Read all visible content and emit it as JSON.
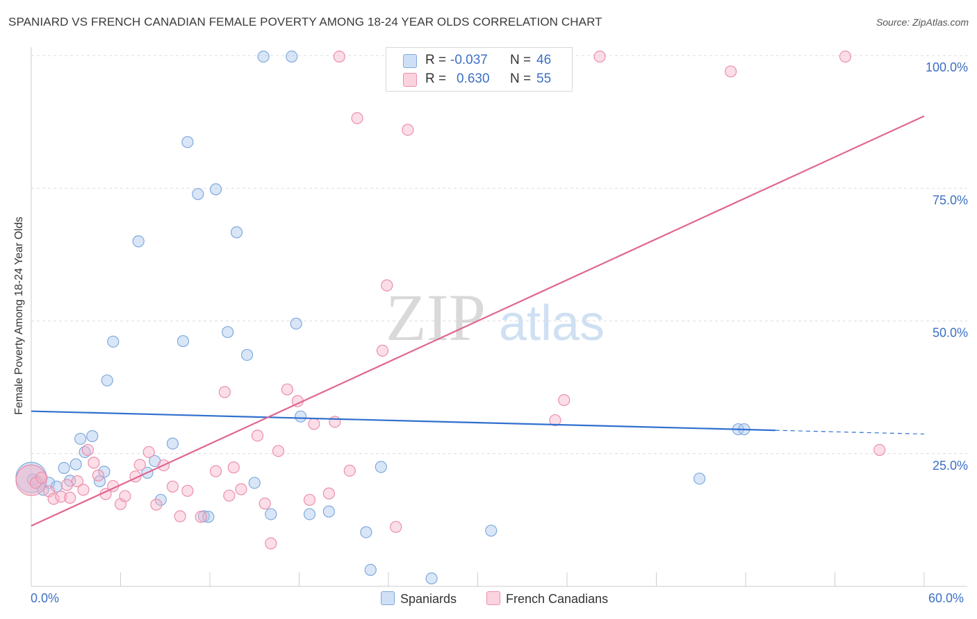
{
  "header": {
    "title": "SPANIARD VS FRENCH CANADIAN FEMALE POVERTY AMONG 18-24 YEAR OLDS CORRELATION CHART",
    "source": "Source: ZipAtlas.com"
  },
  "watermark": {
    "zip": "ZIP",
    "atlas": "atlas"
  },
  "legend": {
    "rows": [
      {
        "r_label": "R =",
        "r_value": "-0.037",
        "n_label": "N =",
        "n_value": "46",
        "color": "#aac8ee"
      },
      {
        "r_label": "R =",
        "r_value": "0.630",
        "n_label": "N =",
        "n_value": "55",
        "color": "#f7b6c9"
      }
    ]
  },
  "bottom_legend": [
    {
      "label": "Spaniards",
      "color": "#aac8ee"
    },
    {
      "label": "French Canadians",
      "color": "#f7b6c9"
    }
  ],
  "chart_data": {
    "type": "scatter",
    "title": "SPANIARD VS FRENCH CANADIAN FEMALE POVERTY AMONG 18-24 YEAR OLDS CORRELATION CHART",
    "xlabel": "",
    "ylabel": "Female Poverty Among 18-24 Year Olds",
    "xlim": [
      0,
      60
    ],
    "ylim": [
      0,
      100
    ],
    "x_tick_labels": [
      "0.0%",
      "60.0%"
    ],
    "y_tick_labels": [
      "25.0%",
      "50.0%",
      "75.0%",
      "100.0%"
    ],
    "y_ticks": [
      25,
      50,
      75,
      100
    ],
    "grid": true,
    "legend_position": "top-center",
    "series": [
      {
        "name": "Spaniards",
        "color": "#aac8ee",
        "stroke": "#7fa9dd",
        "trend_color": "#2f6fce",
        "trend": {
          "x0": 0,
          "y0": 33.0,
          "x1": 50,
          "y1": 29.4,
          "dash_to_x": 60,
          "dash_to_y": 28.7
        },
        "points": [
          [
            0.0,
            20.5
          ],
          [
            0.4,
            19.8
          ],
          [
            0.8,
            18.2
          ],
          [
            1.2,
            19.5
          ],
          [
            1.7,
            18.8
          ],
          [
            2.2,
            22.3
          ],
          [
            2.6,
            19.9
          ],
          [
            3.0,
            23.0
          ],
          [
            3.3,
            27.8
          ],
          [
            3.6,
            25.3
          ],
          [
            4.1,
            28.3
          ],
          [
            4.6,
            19.8
          ],
          [
            4.9,
            21.6
          ],
          [
            5.1,
            38.8
          ],
          [
            5.5,
            46.1
          ],
          [
            7.2,
            65.0
          ],
          [
            7.8,
            21.4
          ],
          [
            8.3,
            23.6
          ],
          [
            8.7,
            16.3
          ],
          [
            9.5,
            26.9
          ],
          [
            10.2,
            46.2
          ],
          [
            10.5,
            83.7
          ],
          [
            11.2,
            73.9
          ],
          [
            11.6,
            13.2
          ],
          [
            11.9,
            13.1
          ],
          [
            12.4,
            74.8
          ],
          [
            13.2,
            47.9
          ],
          [
            13.8,
            66.7
          ],
          [
            14.5,
            43.6
          ],
          [
            15.0,
            19.5
          ],
          [
            15.6,
            99.8
          ],
          [
            16.1,
            13.6
          ],
          [
            17.5,
            99.8
          ],
          [
            17.8,
            49.5
          ],
          [
            18.1,
            32.0
          ],
          [
            18.7,
            13.6
          ],
          [
            20.0,
            14.1
          ],
          [
            22.5,
            10.2
          ],
          [
            22.8,
            3.1
          ],
          [
            23.5,
            22.5
          ],
          [
            26.9,
            1.5
          ],
          [
            30.9,
            10.5
          ],
          [
            44.9,
            20.3
          ],
          [
            47.5,
            29.6
          ],
          [
            47.9,
            29.6
          ],
          [
            0.1,
            20.1
          ]
        ]
      },
      {
        "name": "French Canadians",
        "color": "#f7b6c9",
        "stroke": "#eb8fac",
        "trend_color": "#e0668f",
        "trend": {
          "x0": 0,
          "y0": 11.4,
          "x1": 60,
          "y1": 88.6
        },
        "points": [
          [
            0.0,
            20.0
          ],
          [
            0.3,
            19.5
          ],
          [
            0.7,
            20.5
          ],
          [
            1.2,
            17.9
          ],
          [
            1.5,
            16.5
          ],
          [
            2.0,
            16.9
          ],
          [
            2.4,
            19.1
          ],
          [
            2.6,
            16.7
          ],
          [
            3.1,
            19.8
          ],
          [
            3.5,
            18.2
          ],
          [
            3.8,
            25.7
          ],
          [
            4.2,
            23.3
          ],
          [
            4.5,
            20.9
          ],
          [
            5.0,
            17.4
          ],
          [
            5.5,
            18.9
          ],
          [
            6.0,
            15.5
          ],
          [
            6.3,
            17.0
          ],
          [
            7.0,
            20.7
          ],
          [
            7.3,
            22.9
          ],
          [
            7.9,
            25.3
          ],
          [
            8.4,
            15.4
          ],
          [
            8.9,
            22.8
          ],
          [
            9.5,
            18.8
          ],
          [
            10.0,
            13.2
          ],
          [
            10.5,
            18.0
          ],
          [
            11.4,
            13.1
          ],
          [
            12.4,
            21.7
          ],
          [
            13.0,
            36.6
          ],
          [
            13.3,
            17.1
          ],
          [
            13.6,
            22.4
          ],
          [
            14.1,
            18.3
          ],
          [
            15.2,
            28.4
          ],
          [
            15.7,
            15.6
          ],
          [
            16.1,
            8.1
          ],
          [
            16.6,
            25.5
          ],
          [
            17.2,
            37.1
          ],
          [
            17.9,
            34.9
          ],
          [
            18.7,
            16.3
          ],
          [
            19.0,
            30.6
          ],
          [
            20.0,
            17.5
          ],
          [
            20.4,
            31.0
          ],
          [
            20.7,
            99.8
          ],
          [
            21.4,
            21.8
          ],
          [
            21.9,
            88.2
          ],
          [
            23.6,
            44.4
          ],
          [
            23.9,
            56.7
          ],
          [
            24.5,
            11.2
          ],
          [
            25.3,
            86.0
          ],
          [
            32.2,
            99.8
          ],
          [
            35.2,
            31.3
          ],
          [
            35.8,
            35.1
          ],
          [
            38.2,
            99.8
          ],
          [
            47.0,
            97.0
          ],
          [
            54.7,
            99.8
          ],
          [
            57.0,
            25.7
          ]
        ]
      }
    ]
  }
}
